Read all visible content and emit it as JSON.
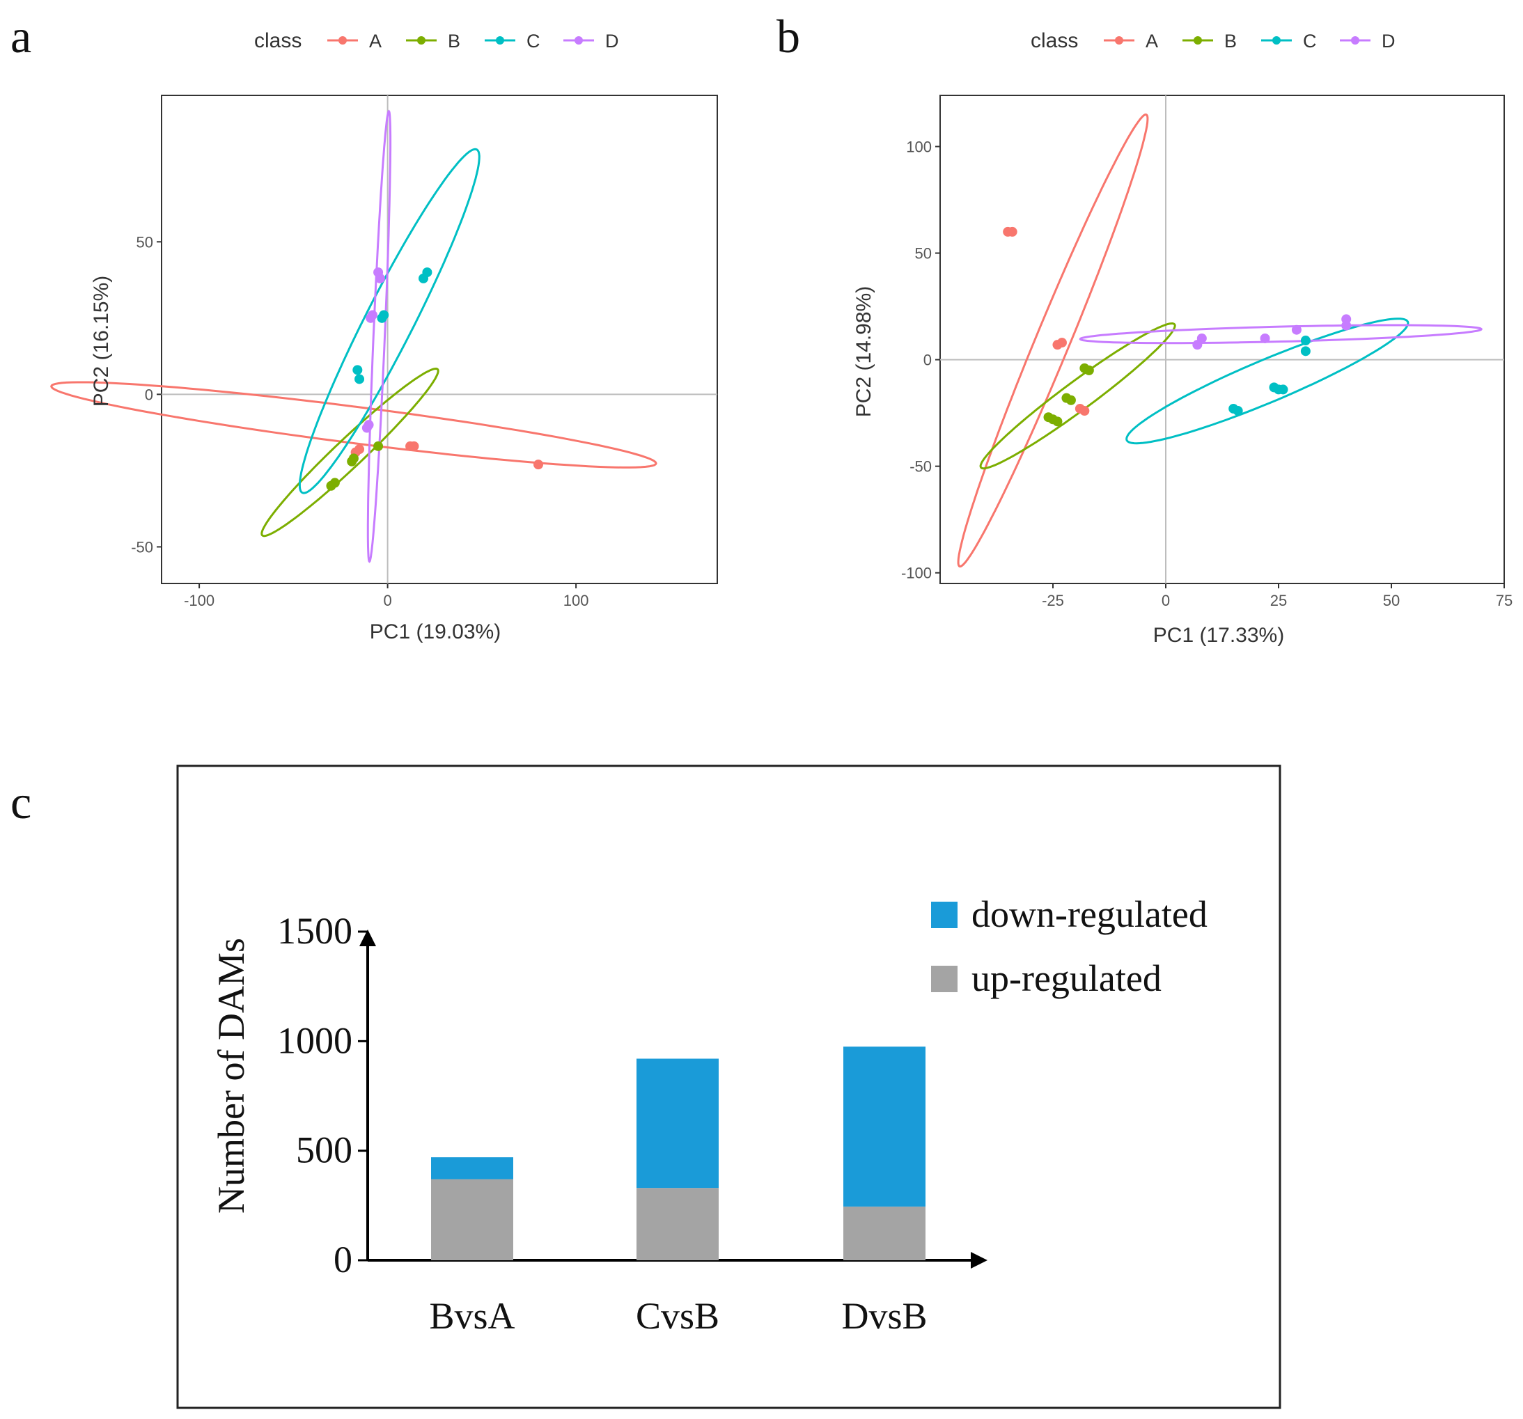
{
  "chart_data": [
    {
      "type": "scatter",
      "panel": "a",
      "title": "",
      "xlabel": "PC1 (19.03%)",
      "ylabel": "PC2 (16.15%)",
      "xlim": [
        -120,
        175
      ],
      "ylim": [
        -62,
        98
      ],
      "xticks": [
        -100,
        0,
        100
      ],
      "yticks": [
        -50,
        0,
        50
      ],
      "grid": false,
      "legend_title": "class",
      "legend_position": "top",
      "series": [
        {
          "name": "A",
          "color": "#F8766D",
          "points": [
            [
              -15,
              -18
            ],
            [
              -17,
              -19
            ],
            [
              12,
              -17
            ],
            [
              14,
              -17
            ],
            [
              80,
              -23
            ]
          ],
          "ellipse": {
            "cx": -18,
            "cy": -10,
            "rx": 161,
            "ry": 6,
            "angle": -4.5
          }
        },
        {
          "name": "B",
          "color": "#7CAE00",
          "points": [
            [
              -28,
              -29
            ],
            [
              -30,
              -30
            ],
            [
              -18,
              -21
            ],
            [
              -19,
              -22
            ],
            [
              -5,
              -17
            ]
          ],
          "ellipse": {
            "cx": -20,
            "cy": -19,
            "rx": 54,
            "ry": 5.5,
            "angle": 30
          }
        },
        {
          "name": "C",
          "color": "#00BFC4",
          "points": [
            [
              -16,
              8
            ],
            [
              -15,
              5
            ],
            [
              -3,
              25
            ],
            [
              -2,
              26
            ],
            [
              19,
              38
            ],
            [
              21,
              40
            ]
          ],
          "ellipse": {
            "cx": 1,
            "cy": 24,
            "rx": 73,
            "ry": 11,
            "angle": 50
          }
        },
        {
          "name": "D",
          "color": "#C77CFF",
          "points": [
            [
              -4,
              38
            ],
            [
              -5,
              40
            ],
            [
              -9,
              25
            ],
            [
              -8,
              26
            ],
            [
              -10,
              -10
            ],
            [
              -11,
              -11
            ]
          ],
          "ellipse": {
            "cx": -4.5,
            "cy": 19,
            "rx": 74,
            "ry": 3,
            "angle": 86
          }
        }
      ]
    },
    {
      "type": "scatter",
      "panel": "b",
      "title": "",
      "xlabel": "PC1 (17.33%)",
      "ylabel": "PC2 (14.98%)",
      "xlim": [
        -50,
        75
      ],
      "ylim": [
        -105,
        124
      ],
      "xticks": [
        -25,
        0,
        25,
        50,
        75
      ],
      "yticks": [
        -100,
        -50,
        0,
        50,
        100
      ],
      "grid": false,
      "legend_title": "class",
      "legend_position": "top",
      "series": [
        {
          "name": "A",
          "color": "#F8766D",
          "points": [
            [
              -35,
              60
            ],
            [
              -34,
              60
            ],
            [
              -24,
              7
            ],
            [
              -23,
              8
            ],
            [
              -19,
              -23
            ],
            [
              -18,
              -24
            ]
          ],
          "ellipse": {
            "cx": -25,
            "cy": 9,
            "rx": 108,
            "ry": 4,
            "angle": 79
          }
        },
        {
          "name": "B",
          "color": "#7CAE00",
          "points": [
            [
              -26,
              -27
            ],
            [
              -25,
              -28
            ],
            [
              -24,
              -29
            ],
            [
              -22,
              -18
            ],
            [
              -21,
              -19
            ],
            [
              -18,
              -4
            ],
            [
              -17,
              -5
            ]
          ],
          "ellipse": {
            "cx": -19.5,
            "cy": -17,
            "rx": 40,
            "ry": 4.5,
            "angle": 58
          }
        },
        {
          "name": "C",
          "color": "#00BFC4",
          "points": [
            [
              15,
              -23
            ],
            [
              16,
              -24
            ],
            [
              24,
              -13
            ],
            [
              25,
              -14
            ],
            [
              26,
              -14
            ],
            [
              31,
              9
            ],
            [
              31,
              4
            ]
          ],
          "ellipse": {
            "cx": 22.5,
            "cy": -10,
            "rx": 42,
            "ry": 8,
            "angle": 43
          }
        },
        {
          "name": "D",
          "color": "#C77CFF",
          "points": [
            [
              7,
              7
            ],
            [
              8,
              10
            ],
            [
              22,
              10
            ],
            [
              29,
              14
            ],
            [
              40,
              16
            ],
            [
              40,
              19
            ]
          ],
          "ellipse": {
            "cx": 25.5,
            "cy": 12,
            "rx": 44.5,
            "ry": 3.5,
            "angle": 3
          }
        }
      ]
    },
    {
      "type": "bar",
      "stacked": true,
      "panel": "c",
      "title": "",
      "xlabel": "",
      "ylabel": "Number of DAMs",
      "categories": [
        "BvsA",
        "CvsB",
        "DvsB"
      ],
      "ylim": [
        0,
        1500
      ],
      "yticks": [
        0,
        500,
        1000,
        1500
      ],
      "grid": false,
      "legend_position": "top-right",
      "series": [
        {
          "name": "up-regulated",
          "color": "#A4A4A4",
          "values": [
            370,
            330,
            245
          ]
        },
        {
          "name": "down-regulated",
          "color": "#1A9BD8",
          "values": [
            100,
            590,
            730
          ]
        }
      ],
      "legend_order": [
        "down-regulated",
        "up-regulated"
      ]
    }
  ]
}
